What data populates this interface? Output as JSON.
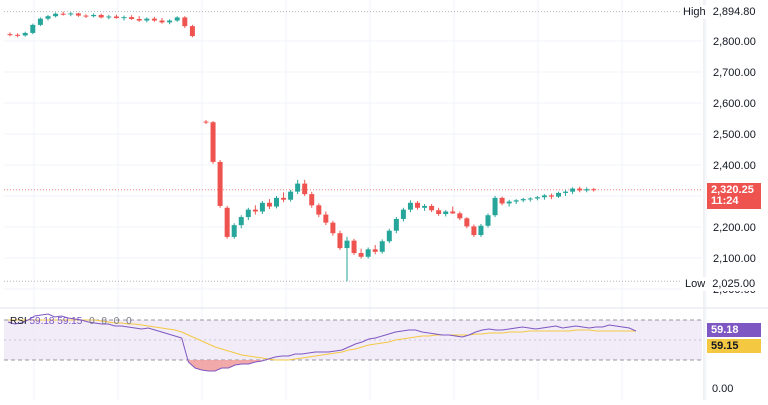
{
  "chart_data": {
    "type": "candlestick",
    "price_axis": {
      "ticks": [
        "2,800.00",
        "2,700.00",
        "2,600.00",
        "2,500.00",
        "2,400.00",
        "2,300.00",
        "2,200.00",
        "2,100.00",
        "2,000.00"
      ],
      "tick_values": [
        2800,
        2700,
        2600,
        2500,
        2400,
        2300,
        2200,
        2100,
        2000
      ],
      "range": [
        1980,
        2910
      ]
    },
    "high": {
      "label": "High",
      "value": "2,894.80",
      "v": 2894.8
    },
    "low": {
      "label": "Low",
      "value": "2,025.00",
      "v": 2025
    },
    "last": {
      "value": "2,320.25",
      "countdown": "11:24",
      "v": 2320.25
    },
    "candles": [
      [
        2822,
        2828,
        2815,
        2820
      ],
      [
        2820,
        2825,
        2812,
        2818
      ],
      [
        2818,
        2830,
        2814,
        2826
      ],
      [
        2826,
        2856,
        2822,
        2852
      ],
      [
        2852,
        2876,
        2848,
        2872
      ],
      [
        2872,
        2884,
        2866,
        2880
      ],
      [
        2880,
        2892,
        2876,
        2888
      ],
      [
        2888,
        2894.8,
        2882,
        2886
      ],
      [
        2886,
        2893,
        2880,
        2889
      ],
      [
        2889,
        2891,
        2878,
        2882
      ],
      [
        2882,
        2886,
        2874,
        2880
      ],
      [
        2880,
        2889,
        2876,
        2884
      ],
      [
        2884,
        2888,
        2873,
        2876
      ],
      [
        2876,
        2884,
        2870,
        2879
      ],
      [
        2879,
        2885,
        2872,
        2874
      ],
      [
        2874,
        2882,
        2866,
        2877
      ],
      [
        2877,
        2883,
        2868,
        2871
      ],
      [
        2871,
        2880,
        2862,
        2866
      ],
      [
        2866,
        2876,
        2860,
        2872
      ],
      [
        2872,
        2878,
        2862,
        2866
      ],
      [
        2866,
        2874,
        2856,
        2860
      ],
      [
        2860,
        2870,
        2854,
        2866
      ],
      [
        2866,
        2880,
        2862,
        2876
      ],
      [
        2876,
        2880,
        2842,
        2848
      ],
      [
        2848,
        2852,
        2812,
        2816
      ],
      [
        2540,
        2545,
        2532,
        2538
      ],
      [
        2538,
        2542,
        2404,
        2410
      ],
      [
        2410,
        2416,
        2262,
        2268
      ],
      [
        2262,
        2268,
        2162,
        2168
      ],
      [
        2168,
        2212,
        2162,
        2206
      ],
      [
        2206,
        2238,
        2196,
        2232
      ],
      [
        2232,
        2262,
        2222,
        2256
      ],
      [
        2256,
        2270,
        2240,
        2250
      ],
      [
        2250,
        2284,
        2242,
        2278
      ],
      [
        2278,
        2290,
        2258,
        2266
      ],
      [
        2266,
        2300,
        2260,
        2294
      ],
      [
        2294,
        2312,
        2280,
        2288
      ],
      [
        2288,
        2320,
        2282,
        2314
      ],
      [
        2314,
        2352,
        2306,
        2340
      ],
      [
        2340,
        2352,
        2300,
        2306
      ],
      [
        2306,
        2314,
        2262,
        2270
      ],
      [
        2270,
        2276,
        2232,
        2240
      ],
      [
        2240,
        2250,
        2206,
        2214
      ],
      [
        2214,
        2220,
        2172,
        2180
      ],
      [
        2180,
        2188,
        2126,
        2132
      ],
      [
        2132,
        2168,
        2025,
        2156
      ],
      [
        2156,
        2162,
        2110,
        2116
      ],
      [
        2116,
        2130,
        2098,
        2104
      ],
      [
        2104,
        2134,
        2098,
        2128
      ],
      [
        2128,
        2142,
        2112,
        2120
      ],
      [
        2120,
        2160,
        2114,
        2154
      ],
      [
        2154,
        2194,
        2148,
        2188
      ],
      [
        2188,
        2232,
        2180,
        2226
      ],
      [
        2226,
        2262,
        2218,
        2256
      ],
      [
        2256,
        2286,
        2248,
        2278
      ],
      [
        2278,
        2284,
        2256,
        2262
      ],
      [
        2262,
        2274,
        2252,
        2268
      ],
      [
        2268,
        2274,
        2248,
        2254
      ],
      [
        2254,
        2262,
        2236,
        2242
      ],
      [
        2242,
        2254,
        2234,
        2250
      ],
      [
        2250,
        2266,
        2242,
        2244
      ],
      [
        2244,
        2250,
        2222,
        2228
      ],
      [
        2228,
        2232,
        2196,
        2202
      ],
      [
        2202,
        2208,
        2168,
        2174
      ],
      [
        2174,
        2210,
        2168,
        2204
      ],
      [
        2204,
        2244,
        2198,
        2238
      ],
      [
        2238,
        2300,
        2232,
        2294
      ],
      [
        2294,
        2298,
        2270,
        2276
      ],
      [
        2276,
        2288,
        2266,
        2282
      ],
      [
        2282,
        2290,
        2274,
        2286
      ],
      [
        2286,
        2294,
        2280,
        2290
      ],
      [
        2290,
        2296,
        2282,
        2292
      ],
      [
        2292,
        2300,
        2286,
        2296
      ],
      [
        2296,
        2306,
        2288,
        2302
      ],
      [
        2302,
        2308,
        2290,
        2298
      ],
      [
        2298,
        2314,
        2294,
        2310
      ],
      [
        2310,
        2320,
        2300,
        2314
      ],
      [
        2314,
        2328,
        2306,
        2324
      ],
      [
        2324,
        2330,
        2312,
        2318
      ],
      [
        2318,
        2328,
        2312,
        2322
      ],
      [
        2322,
        2326,
        2314,
        2320.25
      ]
    ],
    "rsi": {
      "title": "RSI",
      "value": "59.18",
      "sma_value": "59.15",
      "zeros": [
        "0",
        "0",
        "0",
        "0"
      ],
      "axis_label": "0.00",
      "levels": [
        30,
        70
      ],
      "line_values": [
        68,
        66,
        67,
        70,
        74,
        75,
        76,
        73,
        74,
        72,
        71,
        70,
        68,
        67,
        66,
        66,
        64,
        64,
        63,
        62,
        61,
        62,
        60,
        58,
        56,
        54,
        52,
        28,
        22,
        20,
        19,
        19,
        22,
        22,
        25,
        26,
        26,
        28,
        29,
        31,
        33,
        34,
        34,
        36,
        36,
        37,
        38,
        38,
        38,
        39,
        40,
        43,
        46,
        48,
        51,
        52,
        54,
        56,
        58,
        59,
        60,
        60,
        58,
        57,
        56,
        55,
        55,
        54,
        53,
        55,
        58,
        60,
        61,
        60,
        60,
        61,
        62,
        63,
        62,
        61,
        62,
        63,
        64,
        62,
        63,
        64,
        63,
        62,
        63,
        63,
        65,
        64,
        63,
        62,
        59
      ],
      "sma_values": [
        70,
        70,
        70,
        70,
        70,
        70,
        70,
        70,
        70,
        70,
        70,
        70,
        70,
        70,
        69,
        68,
        67,
        67,
        66,
        66,
        65,
        64,
        63,
        62,
        61,
        60,
        58,
        55,
        52,
        49,
        46,
        43,
        41,
        39,
        37,
        35,
        34,
        33,
        32,
        31,
        30,
        30,
        30,
        31,
        32,
        33,
        34,
        35,
        36,
        37,
        38,
        40,
        41,
        43,
        45,
        46,
        47,
        48,
        50,
        51,
        52,
        53,
        54,
        54,
        55,
        55,
        55,
        55,
        55,
        55,
        56,
        56,
        57,
        57,
        57,
        58,
        58,
        58,
        59,
        59,
        59,
        59,
        59,
        59,
        59,
        60,
        60,
        60,
        59,
        59,
        59,
        59,
        59,
        59,
        59
      ]
    },
    "colors": {
      "up": "#26a69a",
      "down": "#ef5350",
      "rsi_line": "#7e57c2",
      "rsi_sma": "#f5c842",
      "rsi_band": "#ede7f6",
      "grid": "#f0f3fa"
    }
  }
}
